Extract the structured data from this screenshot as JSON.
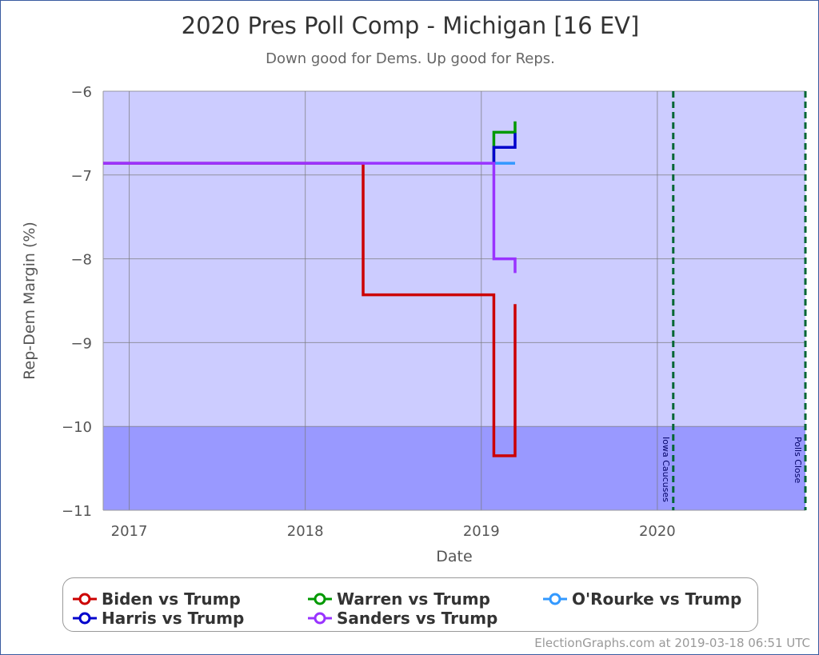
{
  "chart_data": {
    "type": "line",
    "title": "2020 Pres Poll Comp - Michigan [16 EV]",
    "subtitle": "Down good for Dems. Up good for Reps.",
    "xlabel": "Date",
    "ylabel": "Rep-Dem Margin (%)",
    "xlim": [
      "2016-11-08",
      "2020-11-03"
    ],
    "ylim": [
      -11,
      -6
    ],
    "x_ticks": [
      {
        "date": "2017-01-01",
        "label": "2017"
      },
      {
        "date": "2018-01-01",
        "label": "2018"
      },
      {
        "date": "2019-01-01",
        "label": "2019"
      },
      {
        "date": "2020-01-01",
        "label": "2020"
      }
    ],
    "y_ticks": [
      -6,
      -7,
      -8,
      -9,
      -10,
      -11
    ],
    "grid": true,
    "step": true,
    "bands": [
      {
        "from": -10,
        "to": -6,
        "color": "#ccccff"
      },
      {
        "from": -11,
        "to": -10,
        "color": "#9999ff"
      }
    ],
    "annotations": [
      {
        "date": "2020-02-03",
        "label": "Iowa Caucuses",
        "color": "#006633"
      },
      {
        "date": "2020-11-03",
        "label": "Polls Close",
        "color": "#006633"
      }
    ],
    "series": [
      {
        "name": "Biden vs Trump",
        "color": "#cc0000",
        "points": [
          [
            "2016-11-08",
            -6.86
          ],
          [
            "2018-05-01",
            -8.43
          ],
          [
            "2019-01-27",
            -10.35
          ],
          [
            "2019-03-12",
            -8.54
          ]
        ]
      },
      {
        "name": "Warren vs Trump",
        "color": "#009900",
        "points": [
          [
            "2019-01-27",
            -6.86
          ],
          [
            "2019-01-27",
            -6.49
          ],
          [
            "2019-03-12",
            -6.36
          ]
        ]
      },
      {
        "name": "O'Rourke vs Trump",
        "color": "#3399ff",
        "points": [
          [
            "2019-01-27",
            -6.86
          ],
          [
            "2019-03-12",
            -6.86
          ]
        ]
      },
      {
        "name": "Harris vs Trump",
        "color": "#0000cc",
        "points": [
          [
            "2019-01-27",
            -6.86
          ],
          [
            "2019-01-27",
            -6.67
          ],
          [
            "2019-03-12",
            -6.5
          ]
        ]
      },
      {
        "name": "Sanders vs Trump",
        "color": "#9933ff",
        "points": [
          [
            "2016-11-08",
            -6.86
          ],
          [
            "2019-01-27",
            -8.0
          ],
          [
            "2019-03-12",
            -8.17
          ]
        ]
      }
    ],
    "legend_position": "bottom"
  },
  "credit": "ElectionGraphs.com at 2019-03-18 06:51 UTC"
}
